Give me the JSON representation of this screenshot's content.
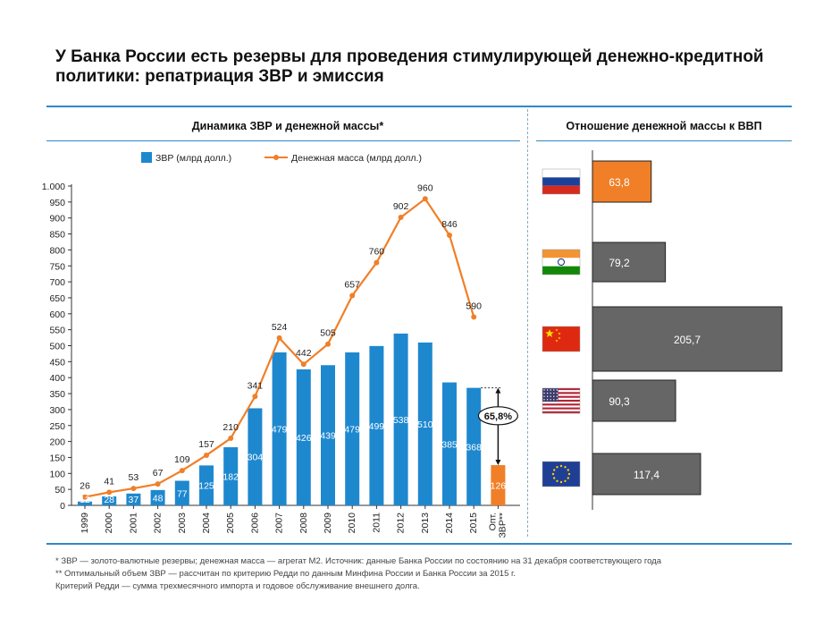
{
  "title": "У Банка России есть резервы для проведения стимулирующей денежно-кредитной политики: репатриация ЗВР и эмиссия",
  "left_panel": {
    "subtitle": "Динамика ЗВР и денежной массы*",
    "legend": {
      "bars": "ЗВР (млрд долл.)",
      "line": "Денежная масса (млрд долл.)"
    },
    "annotation": "65,8%"
  },
  "right_panel": {
    "subtitle": "Отношение денежной массы к ВВП"
  },
  "footnotes": [
    "* ЗВР — золото-валютные резервы; денежная масса — агрегат М2. Источник: данные Банка России по состоянию на 31 декабря соответствующего года",
    "** Оптимальный объем ЗВР — рассчитан по критерию Редди по данным Минфина России и Банка России за 2015 г.",
    "Критерий Редди — сумма трехмесячного импорта и годовое обслуживание внешнего долга."
  ],
  "colors": {
    "bar": "#1e88cf",
    "line": "#f07f28",
    "highlight": "#f07f28",
    "gray": "#666666",
    "rule": "#2f88c8"
  },
  "chart_data": [
    {
      "type": "bar",
      "categories": [
        "1999",
        "2000",
        "2001",
        "2002",
        "2003",
        "2004",
        "2005",
        "2006",
        "2007",
        "2008",
        "2009",
        "2010",
        "2011",
        "2012",
        "2013",
        "2014",
        "2015",
        "Опт. ЗВР**"
      ],
      "series": [
        {
          "name": "ЗВР (млрд долл.)",
          "type": "bar",
          "values": [
            12,
            28,
            37,
            48,
            77,
            125,
            182,
            304,
            479,
            426,
            439,
            479,
            499,
            538,
            510,
            385,
            368,
            126
          ]
        },
        {
          "name": "Денежная масса (млрд долл.)",
          "type": "line",
          "values": [
            26,
            41,
            53,
            67,
            109,
            157,
            210,
            341,
            524,
            442,
            505,
            657,
            760,
            902,
            960,
            846,
            590,
            null
          ]
        }
      ],
      "ylim": [
        0,
        1000
      ],
      "yticks": [
        0,
        50,
        100,
        150,
        200,
        250,
        300,
        350,
        400,
        450,
        500,
        550,
        600,
        650,
        700,
        750,
        800,
        850,
        900,
        950,
        "1.000"
      ],
      "highlight_category": "Опт. ЗВР**"
    },
    {
      "type": "bar",
      "orientation": "horizontal",
      "categories": [
        "russia-flag",
        "india-flag",
        "china-flag",
        "usa-flag",
        "eu-flag"
      ],
      "values": [
        63.8,
        79.2,
        205.7,
        90.3,
        117.4
      ],
      "labels": [
        "63,8",
        "79,2",
        "205,7",
        "90,3",
        "117,4"
      ],
      "colors": [
        "#f07f28",
        "#666666",
        "#666666",
        "#666666",
        "#666666"
      ]
    }
  ]
}
